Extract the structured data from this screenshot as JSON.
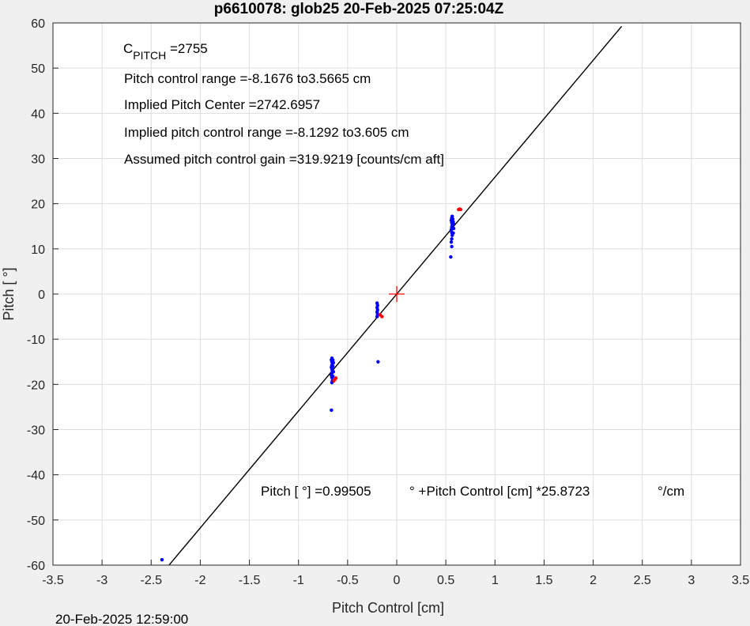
{
  "chart_data": {
    "type": "scatter",
    "title": "p6610078: glob25 20-Feb-2025 07:25:04Z",
    "xlabel": "Pitch Control [cm]",
    "ylabel": "Pitch [ °]",
    "xlim": [
      -3.5,
      3.5
    ],
    "ylim": [
      -60,
      60
    ],
    "xticks": [
      -3.5,
      -3,
      -2.5,
      -2,
      -1.5,
      -1,
      -0.5,
      0,
      0.5,
      1,
      1.5,
      2,
      2.5,
      3,
      3.5
    ],
    "yticks": [
      -60,
      -50,
      -40,
      -30,
      -20,
      -10,
      0,
      10,
      20,
      30,
      40,
      50,
      60
    ],
    "grid": true,
    "colors": {
      "blue": "#0000ff",
      "red": "#ff0000",
      "line": "#000000",
      "grid": "#dedede"
    },
    "fit_line": {
      "x": [
        -2.35,
        2.29
      ],
      "y": [
        -60.81,
        59.24
      ]
    },
    "center_marker": {
      "x": 0.0,
      "y": 0.0,
      "color": "#ff0000"
    },
    "series": [
      {
        "color": "#0000ff",
        "points": [
          [
            -2.39,
            -58.8
          ],
          [
            -0.665,
            -25.7
          ],
          [
            -0.66,
            -19.6
          ],
          [
            -0.655,
            -19.2
          ],
          [
            -0.66,
            -18.5
          ],
          [
            -0.665,
            -18.0
          ],
          [
            -0.66,
            -17.5
          ],
          [
            -0.655,
            -17.0
          ],
          [
            -0.66,
            -16.6
          ],
          [
            -0.665,
            -16.2
          ],
          [
            -0.66,
            -15.8
          ],
          [
            -0.655,
            -15.4
          ],
          [
            -0.66,
            -15.0
          ],
          [
            -0.665,
            -14.6
          ],
          [
            -0.66,
            -14.2
          ],
          [
            -0.65,
            -16.0
          ],
          [
            -0.645,
            -17.2
          ],
          [
            -0.65,
            -18.2
          ],
          [
            -0.645,
            -15.2
          ],
          [
            -0.65,
            -14.6
          ],
          [
            -0.19,
            -15.0
          ],
          [
            -0.2,
            -5.0
          ],
          [
            -0.195,
            -4.5
          ],
          [
            -0.2,
            -4.0
          ],
          [
            -0.195,
            -3.5
          ],
          [
            -0.2,
            -3.0
          ],
          [
            -0.195,
            -2.5
          ],
          [
            -0.2,
            -2.0
          ],
          [
            0.55,
            8.2
          ],
          [
            0.56,
            10.5
          ],
          [
            0.555,
            11.5
          ],
          [
            0.56,
            12.2
          ],
          [
            0.565,
            13.0
          ],
          [
            0.56,
            13.6
          ],
          [
            0.555,
            14.2
          ],
          [
            0.56,
            14.8
          ],
          [
            0.565,
            15.3
          ],
          [
            0.56,
            15.8
          ],
          [
            0.555,
            16.3
          ],
          [
            0.56,
            16.8
          ],
          [
            0.565,
            17.2
          ],
          [
            0.575,
            16.0
          ],
          [
            0.58,
            14.5
          ],
          [
            0.575,
            13.5
          ],
          [
            0.58,
            15.5
          ],
          [
            0.57,
            16.6
          ]
        ]
      },
      {
        "color": "#ff0000",
        "points": [
          [
            -0.62,
            -18.6
          ],
          [
            -0.64,
            -19.2
          ],
          [
            -0.63,
            -18.9
          ],
          [
            -0.15,
            -5.0
          ],
          [
            -0.17,
            -4.6
          ],
          [
            0.63,
            18.7
          ],
          [
            0.65,
            18.7
          ],
          [
            0.64,
            18.8
          ]
        ]
      }
    ],
    "annotations": {
      "c_pitch_main": "C",
      "c_pitch_sub": "PITCH",
      "c_pitch_value": " =2755",
      "line2": "Pitch control range =-8.1676 to3.5665 cm",
      "line3": "Implied Pitch Center =2742.6957",
      "line4": "Implied pitch control range =-8.1292 to3.605 cm",
      "line5": "Assumed pitch control gain =319.9219 [counts/cm aft]",
      "eq_part1": "Pitch [  °] =0.99505",
      "eq_part2": "° +Pitch Control [cm] *25.8723",
      "eq_part3": "°/cm"
    },
    "footer_timestamp": "20-Feb-2025 12:59:00"
  }
}
